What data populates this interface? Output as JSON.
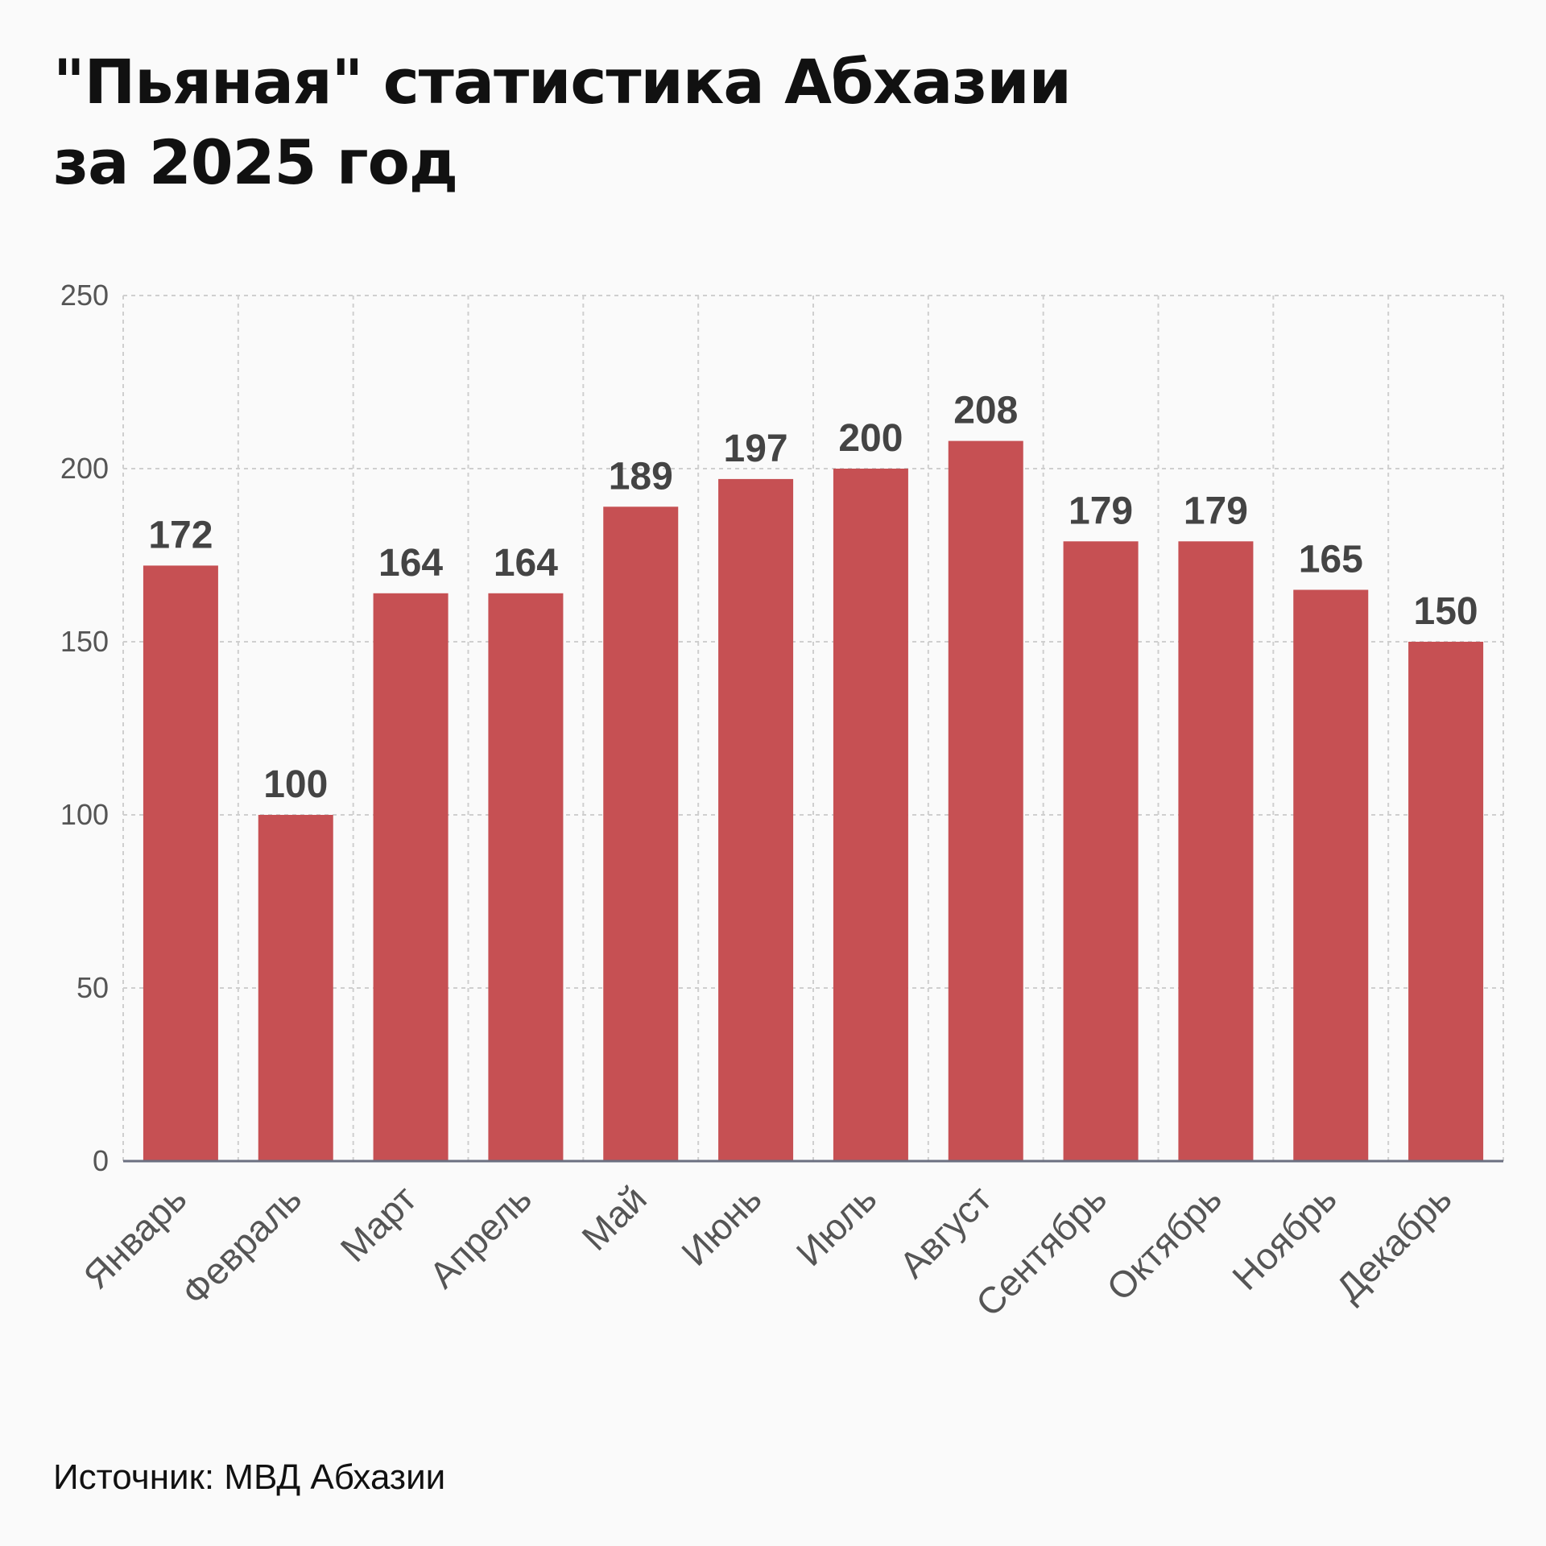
{
  "title": "\"Пьяная\" статистика Абхазии за 2025 год",
  "source": "Источник: МВД Абхазии",
  "chart_data": {
    "type": "bar",
    "title": "\"Пьяная\" статистика Абхазии за 2025 год",
    "xlabel": "",
    "ylabel": "",
    "categories": [
      "Январь",
      "Февраль",
      "Март",
      "Апрель",
      "Май",
      "Июнь",
      "Июль",
      "Август",
      "Сентябрь",
      "Октябрь",
      "Ноябрь",
      "Декабрь"
    ],
    "values": [
      172,
      100,
      164,
      164,
      189,
      197,
      200,
      208,
      179,
      179,
      165,
      150
    ],
    "ylim": [
      0,
      250
    ],
    "yticks": [
      0,
      50,
      100,
      150,
      200,
      250
    ],
    "grid": true,
    "data_labels": true,
    "bar_color": "#c65053"
  }
}
